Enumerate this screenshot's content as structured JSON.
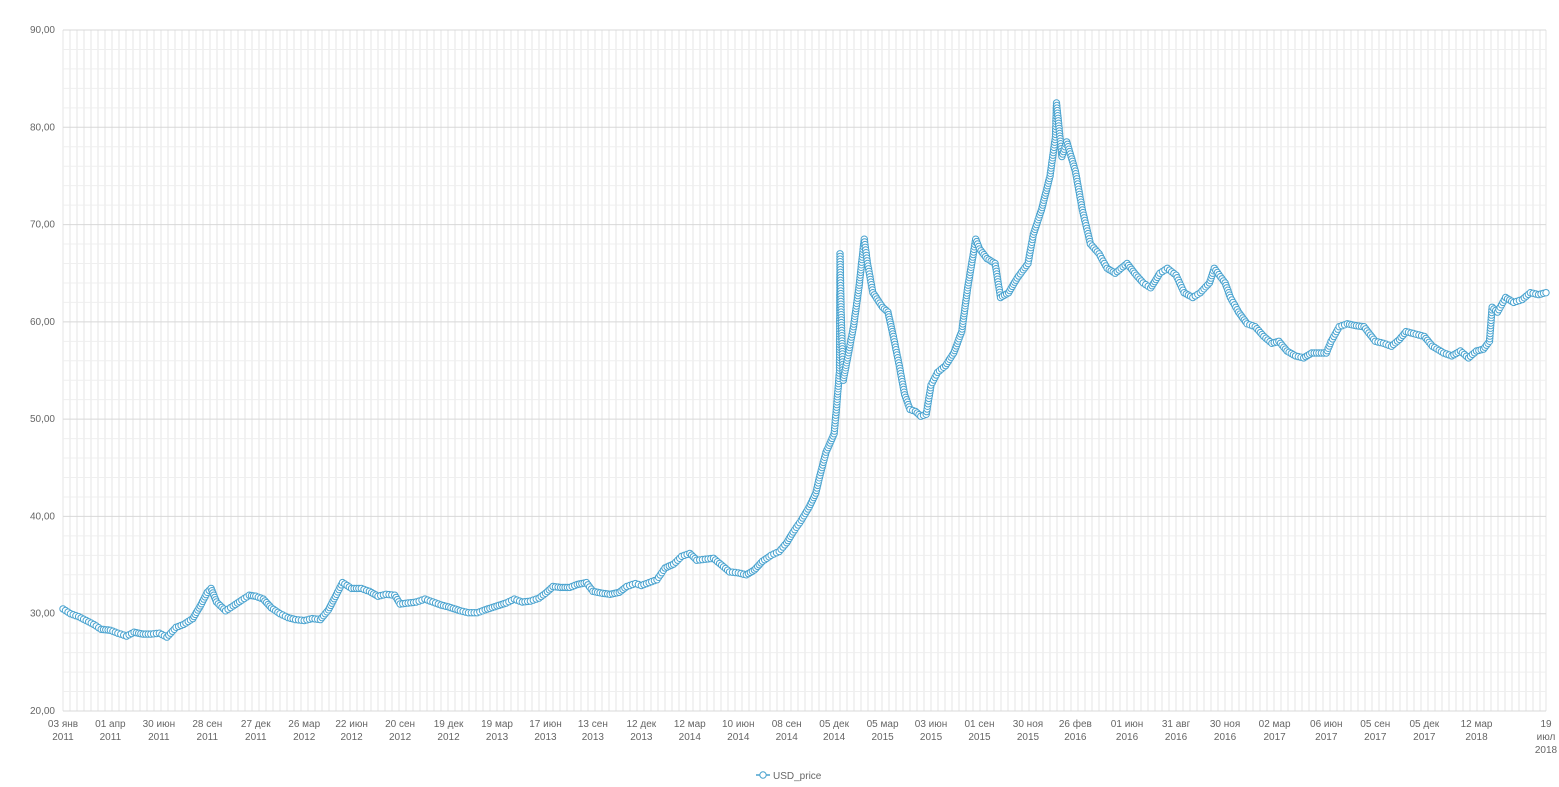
{
  "chart_data": {
    "type": "line",
    "title": "",
    "xlabel": "",
    "ylabel": "",
    "ylim": [
      20,
      90
    ],
    "y_ticks": [
      "20,00",
      "30,00",
      "40,00",
      "50,00",
      "60,00",
      "70,00",
      "80,00",
      "90,00"
    ],
    "x_ticks": [
      {
        "date": "2011-01-03",
        "label": [
          "03 янв",
          "2011"
        ]
      },
      {
        "date": "2011-04-01",
        "label": [
          "01 апр",
          "2011"
        ]
      },
      {
        "date": "2011-06-30",
        "label": [
          "30 июн",
          "2011"
        ]
      },
      {
        "date": "2011-09-28",
        "label": [
          "28 сен",
          "2011"
        ]
      },
      {
        "date": "2011-12-27",
        "label": [
          "27 дек",
          "2011"
        ]
      },
      {
        "date": "2012-03-26",
        "label": [
          "26 мар",
          "2012"
        ]
      },
      {
        "date": "2012-06-22",
        "label": [
          "22 июн",
          "2012"
        ]
      },
      {
        "date": "2012-09-20",
        "label": [
          "20 сен",
          "2012"
        ]
      },
      {
        "date": "2012-12-19",
        "label": [
          "19 дек",
          "2012"
        ]
      },
      {
        "date": "2013-03-19",
        "label": [
          "19 мар",
          "2013"
        ]
      },
      {
        "date": "2013-06-17",
        "label": [
          "17 июн",
          "2013"
        ]
      },
      {
        "date": "2013-09-13",
        "label": [
          "13 сен",
          "2013"
        ]
      },
      {
        "date": "2013-12-12",
        "label": [
          "12 дек",
          "2013"
        ]
      },
      {
        "date": "2014-03-12",
        "label": [
          "12 мар",
          "2014"
        ]
      },
      {
        "date": "2014-06-10",
        "label": [
          "10 июн",
          "2014"
        ]
      },
      {
        "date": "2014-09-08",
        "label": [
          "08 сен",
          "2014"
        ]
      },
      {
        "date": "2014-12-05",
        "label": [
          "05 дек",
          "2014"
        ]
      },
      {
        "date": "2015-03-05",
        "label": [
          "05 мар",
          "2015"
        ]
      },
      {
        "date": "2015-06-03",
        "label": [
          "03 июн",
          "2015"
        ]
      },
      {
        "date": "2015-09-01",
        "label": [
          "01 сен",
          "2015"
        ]
      },
      {
        "date": "2015-11-30",
        "label": [
          "30 ноя",
          "2015"
        ]
      },
      {
        "date": "2016-02-26",
        "label": [
          "26 фев",
          "2016"
        ]
      },
      {
        "date": "2016-06-01",
        "label": [
          "01 июн",
          "2016"
        ]
      },
      {
        "date": "2016-08-31",
        "label": [
          "31 авг",
          "2016"
        ]
      },
      {
        "date": "2016-11-30",
        "label": [
          "30 ноя",
          "2016"
        ]
      },
      {
        "date": "2017-03-02",
        "label": [
          "02 мар",
          "2017"
        ]
      },
      {
        "date": "2017-06-06",
        "label": [
          "06 июн",
          "2017"
        ]
      },
      {
        "date": "2017-09-05",
        "label": [
          "05 сен",
          "2017"
        ]
      },
      {
        "date": "2017-12-05",
        "label": [
          "05 дек",
          "2017"
        ]
      },
      {
        "date": "2018-03-12",
        "label": [
          "12 мар",
          "2018"
        ]
      },
      {
        "date": "2018-07-19",
        "label": [
          "19",
          "июл",
          "2018"
        ]
      }
    ],
    "legend": {
      "position": "bottom-center",
      "entries": [
        "USD_price"
      ]
    },
    "grid": true,
    "series": [
      {
        "name": "USD_price",
        "color": "#4aa3cf",
        "marker": "circle-open",
        "points": [
          [
            "2011-01-03",
            30.5
          ],
          [
            "2011-01-17",
            30.0
          ],
          [
            "2011-02-01",
            29.7
          ],
          [
            "2011-02-15",
            29.3
          ],
          [
            "2011-03-01",
            28.9
          ],
          [
            "2011-03-15",
            28.4
          ],
          [
            "2011-04-01",
            28.3
          ],
          [
            "2011-04-15",
            28.0
          ],
          [
            "2011-05-01",
            27.7
          ],
          [
            "2011-05-15",
            28.1
          ],
          [
            "2011-06-01",
            27.9
          ],
          [
            "2011-06-15",
            27.9
          ],
          [
            "2011-07-01",
            28.0
          ],
          [
            "2011-07-15",
            27.6
          ],
          [
            "2011-08-01",
            28.6
          ],
          [
            "2011-08-15",
            28.9
          ],
          [
            "2011-09-01",
            29.5
          ],
          [
            "2011-09-15",
            30.8
          ],
          [
            "2011-09-28",
            32.2
          ],
          [
            "2011-10-05",
            32.6
          ],
          [
            "2011-10-15",
            31.2
          ],
          [
            "2011-11-01",
            30.3
          ],
          [
            "2011-11-15",
            30.8
          ],
          [
            "2011-12-01",
            31.4
          ],
          [
            "2011-12-15",
            31.9
          ],
          [
            "2011-12-27",
            31.8
          ],
          [
            "2012-01-10",
            31.5
          ],
          [
            "2012-01-25",
            30.6
          ],
          [
            "2012-02-10",
            30.0
          ],
          [
            "2012-02-25",
            29.6
          ],
          [
            "2012-03-10",
            29.4
          ],
          [
            "2012-03-26",
            29.3
          ],
          [
            "2012-04-10",
            29.5
          ],
          [
            "2012-04-25",
            29.4
          ],
          [
            "2012-05-10",
            30.4
          ],
          [
            "2012-05-25",
            32.0
          ],
          [
            "2012-06-05",
            33.2
          ],
          [
            "2012-06-22",
            32.6
          ],
          [
            "2012-07-10",
            32.6
          ],
          [
            "2012-07-25",
            32.3
          ],
          [
            "2012-08-10",
            31.8
          ],
          [
            "2012-08-25",
            32.0
          ],
          [
            "2012-09-10",
            31.9
          ],
          [
            "2012-09-20",
            31.0
          ],
          [
            "2012-10-05",
            31.1
          ],
          [
            "2012-10-20",
            31.2
          ],
          [
            "2012-11-05",
            31.5
          ],
          [
            "2012-11-20",
            31.2
          ],
          [
            "2012-12-05",
            30.9
          ],
          [
            "2012-12-19",
            30.7
          ],
          [
            "2013-01-10",
            30.3
          ],
          [
            "2013-01-25",
            30.1
          ],
          [
            "2013-02-10",
            30.1
          ],
          [
            "2013-02-25",
            30.4
          ],
          [
            "2013-03-19",
            30.8
          ],
          [
            "2013-04-05",
            31.1
          ],
          [
            "2013-04-20",
            31.5
          ],
          [
            "2013-05-05",
            31.2
          ],
          [
            "2013-05-20",
            31.3
          ],
          [
            "2013-06-05",
            31.6
          ],
          [
            "2013-06-17",
            32.1
          ],
          [
            "2013-07-01",
            32.8
          ],
          [
            "2013-07-15",
            32.7
          ],
          [
            "2013-08-01",
            32.7
          ],
          [
            "2013-08-15",
            33.0
          ],
          [
            "2013-09-01",
            33.2
          ],
          [
            "2013-09-13",
            32.3
          ],
          [
            "2013-10-01",
            32.1
          ],
          [
            "2013-10-15",
            32.0
          ],
          [
            "2013-11-01",
            32.2
          ],
          [
            "2013-11-15",
            32.8
          ],
          [
            "2013-12-01",
            33.1
          ],
          [
            "2013-12-12",
            32.9
          ],
          [
            "2014-01-10",
            33.5
          ],
          [
            "2014-01-25",
            34.7
          ],
          [
            "2014-02-10",
            35.1
          ],
          [
            "2014-02-25",
            35.9
          ],
          [
            "2014-03-12",
            36.2
          ],
          [
            "2014-03-25",
            35.5
          ],
          [
            "2014-04-10",
            35.6
          ],
          [
            "2014-04-25",
            35.7
          ],
          [
            "2014-05-10",
            35.0
          ],
          [
            "2014-05-25",
            34.3
          ],
          [
            "2014-06-10",
            34.2
          ],
          [
            "2014-06-25",
            34.0
          ],
          [
            "2014-07-10",
            34.5
          ],
          [
            "2014-07-25",
            35.4
          ],
          [
            "2014-08-10",
            36.0
          ],
          [
            "2014-08-25",
            36.4
          ],
          [
            "2014-09-08",
            37.3
          ],
          [
            "2014-09-20",
            38.4
          ],
          [
            "2014-10-05",
            39.6
          ],
          [
            "2014-10-20",
            41.0
          ],
          [
            "2014-11-01",
            42.4
          ],
          [
            "2014-11-10",
            44.5
          ],
          [
            "2014-11-20",
            46.6
          ],
          [
            "2014-12-05",
            48.5
          ],
          [
            "2014-12-10",
            51.5
          ],
          [
            "2014-12-15",
            55.0
          ],
          [
            "2014-12-16",
            67.0
          ],
          [
            "2014-12-18",
            61.0
          ],
          [
            "2014-12-22",
            54.0
          ],
          [
            "2014-12-30",
            56.3
          ],
          [
            "2015-01-10",
            59.5
          ],
          [
            "2015-01-20",
            63.5
          ],
          [
            "2015-01-30",
            68.5
          ],
          [
            "2015-02-05",
            66.0
          ],
          [
            "2015-02-15",
            63.0
          ],
          [
            "2015-03-05",
            61.5
          ],
          [
            "2015-03-15",
            61.0
          ],
          [
            "2015-03-25",
            58.5
          ],
          [
            "2015-04-05",
            55.5
          ],
          [
            "2015-04-15",
            52.5
          ],
          [
            "2015-04-25",
            51.0
          ],
          [
            "2015-05-05",
            50.8
          ],
          [
            "2015-05-15",
            50.3
          ],
          [
            "2015-05-25",
            50.5
          ],
          [
            "2015-06-03",
            53.5
          ],
          [
            "2015-06-15",
            54.8
          ],
          [
            "2015-06-30",
            55.5
          ],
          [
            "2015-07-15",
            56.8
          ],
          [
            "2015-07-30",
            59.0
          ],
          [
            "2015-08-10",
            63.5
          ],
          [
            "2015-08-25",
            68.5
          ],
          [
            "2015-09-01",
            67.5
          ],
          [
            "2015-09-15",
            66.5
          ],
          [
            "2015-09-30",
            66.0
          ],
          [
            "2015-10-10",
            62.5
          ],
          [
            "2015-10-25",
            63.0
          ],
          [
            "2015-11-10",
            64.5
          ],
          [
            "2015-11-30",
            66.0
          ],
          [
            "2015-12-10",
            69.0
          ],
          [
            "2015-12-25",
            71.5
          ],
          [
            "2016-01-10",
            75.0
          ],
          [
            "2016-01-20",
            79.0
          ],
          [
            "2016-01-22",
            82.5
          ],
          [
            "2016-02-01",
            77.0
          ],
          [
            "2016-02-10",
            78.5
          ],
          [
            "2016-02-26",
            75.5
          ],
          [
            "2016-03-10",
            71.5
          ],
          [
            "2016-03-25",
            68.0
          ],
          [
            "2016-04-10",
            67.0
          ],
          [
            "2016-04-25",
            65.5
          ],
          [
            "2016-05-10",
            65.0
          ],
          [
            "2016-06-01",
            66.0
          ],
          [
            "2016-06-15",
            65.0
          ],
          [
            "2016-07-01",
            64.0
          ],
          [
            "2016-07-15",
            63.5
          ],
          [
            "2016-08-01",
            65.0
          ],
          [
            "2016-08-15",
            65.5
          ],
          [
            "2016-08-31",
            64.8
          ],
          [
            "2016-09-15",
            63.0
          ],
          [
            "2016-10-01",
            62.5
          ],
          [
            "2016-10-15",
            63.0
          ],
          [
            "2016-11-01",
            64.0
          ],
          [
            "2016-11-10",
            65.5
          ],
          [
            "2016-11-30",
            64.0
          ],
          [
            "2016-12-10",
            62.5
          ],
          [
            "2016-12-25",
            61.0
          ],
          [
            "2017-01-10",
            59.8
          ],
          [
            "2017-01-25",
            59.5
          ],
          [
            "2017-02-10",
            58.5
          ],
          [
            "2017-02-25",
            57.8
          ],
          [
            "2017-03-10",
            58.0
          ],
          [
            "2017-03-25",
            57.0
          ],
          [
            "2017-04-10",
            56.5
          ],
          [
            "2017-04-25",
            56.3
          ],
          [
            "2017-05-10",
            56.8
          ],
          [
            "2017-06-06",
            56.8
          ],
          [
            "2017-06-15",
            58.0
          ],
          [
            "2017-06-30",
            59.5
          ],
          [
            "2017-07-15",
            59.8
          ],
          [
            "2017-08-01",
            59.6
          ],
          [
            "2017-08-15",
            59.5
          ],
          [
            "2017-09-05",
            58.0
          ],
          [
            "2017-09-20",
            57.8
          ],
          [
            "2017-10-05",
            57.5
          ],
          [
            "2017-10-20",
            58.2
          ],
          [
            "2017-11-01",
            59.0
          ],
          [
            "2017-11-15",
            58.8
          ],
          [
            "2017-12-05",
            58.5
          ],
          [
            "2017-12-20",
            57.5
          ],
          [
            "2018-01-10",
            56.8
          ],
          [
            "2018-01-25",
            56.5
          ],
          [
            "2018-02-10",
            57.0
          ],
          [
            "2018-02-25",
            56.3
          ],
          [
            "2018-03-12",
            57.0
          ],
          [
            "2018-03-25",
            57.2
          ],
          [
            "2018-04-05",
            58.0
          ],
          [
            "2018-04-10",
            61.5
          ],
          [
            "2018-04-20",
            61.0
          ],
          [
            "2018-05-05",
            62.5
          ],
          [
            "2018-05-20",
            62.0
          ],
          [
            "2018-06-05",
            62.3
          ],
          [
            "2018-06-20",
            63.0
          ],
          [
            "2018-07-05",
            62.8
          ],
          [
            "2018-07-19",
            63.0
          ]
        ]
      }
    ]
  }
}
